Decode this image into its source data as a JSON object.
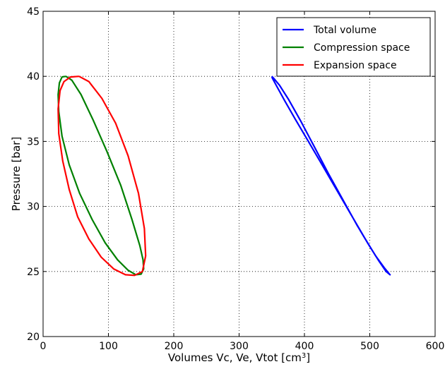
{
  "chart_data": {
    "type": "line",
    "title": "",
    "xlabel": "Volumes Vc, Ve, Vtot [cm",
    "xlabel_sup": "3",
    "xlabel_end": "]",
    "ylabel": "Pressure [bar]",
    "xlim": [
      0,
      600
    ],
    "ylim": [
      20,
      45
    ],
    "x_ticks": [
      0,
      100,
      200,
      300,
      400,
      500,
      600
    ],
    "y_ticks": [
      20,
      25,
      30,
      35,
      40,
      45
    ],
    "grid": true,
    "legend_position": "top-right",
    "series": [
      {
        "name": "Total volume",
        "color": "#0000ff",
        "x": [
          350,
          353,
          362,
          376,
          394,
          415,
          437,
          459,
          480,
          499,
          514,
          525,
          531,
          530,
          522,
          509,
          492,
          471,
          449,
          427,
          406,
          386,
          370,
          358,
          351,
          350
        ],
        "y": [
          40.0,
          39.85,
          39.3,
          38.2,
          36.6,
          34.6,
          32.5,
          30.5,
          28.6,
          27.0,
          25.8,
          25.0,
          24.75,
          24.8,
          25.3,
          26.2,
          27.6,
          29.4,
          31.3,
          33.2,
          35.0,
          36.7,
          38.1,
          39.2,
          39.85,
          40.0
        ]
      },
      {
        "name": "Compression space",
        "color": "#008000",
        "x": [
          35,
          44,
          58,
          77,
          98,
          119,
          136,
          148,
          153,
          154,
          150,
          142,
          130,
          114,
          95,
          75,
          56,
          40,
          29,
          24,
          23,
          25,
          29,
          35
        ],
        "y": [
          40.0,
          39.7,
          38.6,
          36.6,
          34.2,
          31.6,
          29.0,
          27.0,
          25.9,
          25.2,
          24.8,
          24.75,
          25.1,
          25.9,
          27.2,
          29.0,
          31.0,
          33.2,
          35.4,
          37.3,
          38.6,
          39.5,
          39.95,
          40.0
        ]
      },
      {
        "name": "Expansion space",
        "color": "#ff0000",
        "x": [
          55,
          70,
          90,
          111,
          130,
          146,
          155,
          157,
          152,
          140,
          126,
          108,
          89,
          70,
          53,
          40,
          30,
          24,
          23,
          26,
          32,
          42,
          55
        ],
        "y": [
          40.0,
          39.6,
          38.3,
          36.4,
          33.9,
          31.0,
          28.3,
          26.2,
          25.0,
          24.7,
          24.75,
          25.2,
          26.1,
          27.5,
          29.2,
          31.3,
          33.5,
          35.6,
          37.5,
          38.9,
          39.6,
          39.95,
          40.0
        ]
      }
    ]
  }
}
